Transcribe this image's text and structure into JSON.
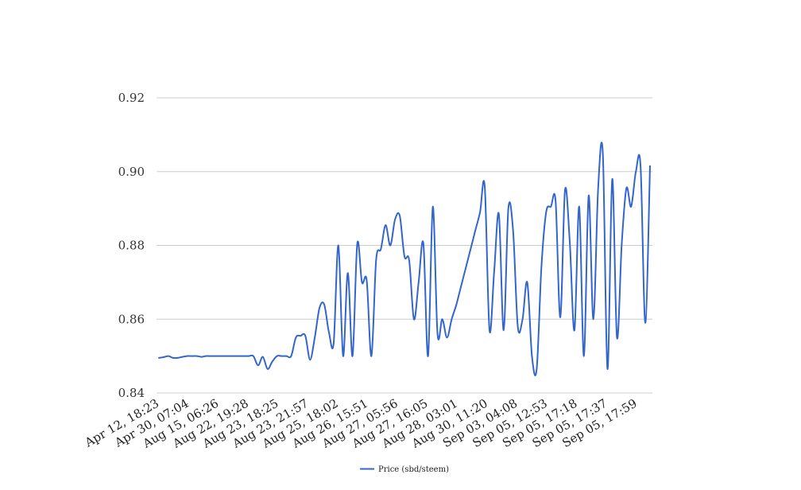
{
  "chart_data": {
    "type": "line",
    "title": "",
    "xlabel": "",
    "ylabel": "",
    "ylim": [
      0.84,
      0.92
    ],
    "yticks": [
      "0.84",
      "0.86",
      "0.88",
      "0.90",
      "0.92"
    ],
    "grid": true,
    "legend_position": "bottom-center",
    "xtick_labels": [
      "Apr 12, 18:23",
      "Apr 30, 07:04",
      "Aug 15, 06:26",
      "Aug 22, 19:28",
      "Aug 23, 18:25",
      "Aug 23, 21:57",
      "Aug 25, 18:02",
      "Aug 26, 15:51",
      "Aug 27, 05:56",
      "Aug 27, 16:05",
      "Aug 28, 03:01",
      "Aug 30, 11:20",
      "Sep 03, 04:08",
      "Sep 05, 12:53",
      "Sep 05, 17:18",
      "Sep 05, 17:37",
      "Sep 05, 17:59"
    ],
    "series": [
      {
        "name": "Price (sbd/steem)",
        "color": "#3366cc",
        "values": [
          0.8495,
          0.8497,
          0.85,
          0.8495,
          0.8495,
          0.8498,
          0.85,
          0.85,
          0.85,
          0.8498,
          0.85,
          0.85,
          0.85,
          0.85,
          0.85,
          0.85,
          0.85,
          0.85,
          0.85,
          0.85,
          0.85,
          0.8475,
          0.8498,
          0.8465,
          0.8485,
          0.85,
          0.85,
          0.85,
          0.85,
          0.855,
          0.8555,
          0.8555,
          0.849,
          0.855,
          0.863,
          0.864,
          0.8565,
          0.8535,
          0.88,
          0.85,
          0.8725,
          0.85,
          0.8805,
          0.87,
          0.8705,
          0.85,
          0.876,
          0.879,
          0.8855,
          0.88,
          0.887,
          0.888,
          0.877,
          0.876,
          0.86,
          0.87,
          0.8805,
          0.85,
          0.8905,
          0.856,
          0.86,
          0.855,
          0.86,
          0.864,
          0.869,
          0.874,
          0.879,
          0.884,
          0.889,
          0.896,
          0.857,
          0.873,
          0.8885,
          0.857,
          0.89,
          0.884,
          0.858,
          0.86,
          0.87,
          0.85,
          0.8465,
          0.874,
          0.889,
          0.8905,
          0.892,
          0.8605,
          0.895,
          0.881,
          0.857,
          0.8905,
          0.85,
          0.8935,
          0.86,
          0.895,
          0.905,
          0.8465,
          0.898,
          0.855,
          0.88,
          0.8955,
          0.8905,
          0.9,
          0.9015,
          0.859,
          0.9015
        ]
      }
    ]
  }
}
